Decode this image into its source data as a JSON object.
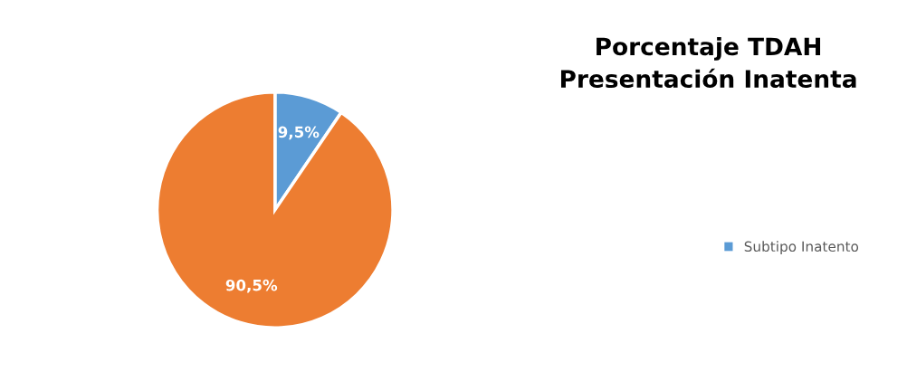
{
  "chart_data": {
    "type": "pie",
    "title": "Porcentaje TDAH\nPresentación Inatenta",
    "categories": [
      "Subtipo Inatento",
      null
    ],
    "values": [
      9.5,
      90.5
    ],
    "colors": [
      "#5b9bd5",
      "#ed7d31"
    ],
    "value_labels": [
      "9,5%",
      "90,5%"
    ],
    "legend": "right"
  }
}
